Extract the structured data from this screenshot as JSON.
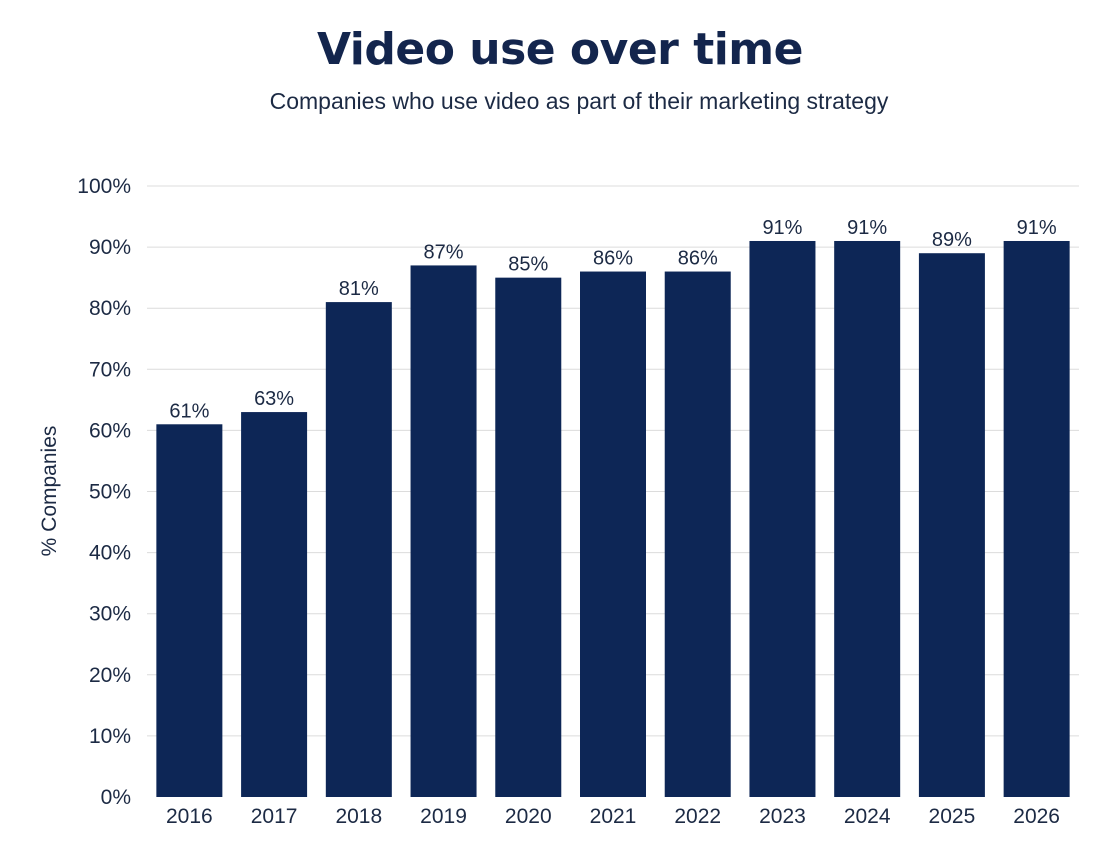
{
  "chart_data": {
    "type": "bar",
    "title": "Video use over time",
    "subtitle": "Companies who use video as part of their marketing strategy",
    "xlabel": "",
    "ylabel": "% Companies",
    "categories": [
      "2016",
      "2017",
      "2018",
      "2019",
      "2020",
      "2021",
      "2022",
      "2023",
      "2024",
      "2025",
      "2026"
    ],
    "values": [
      61,
      63,
      81,
      87,
      85,
      86,
      86,
      91,
      91,
      89,
      91
    ],
    "value_labels": [
      "61%",
      "63%",
      "81%",
      "87%",
      "85%",
      "86%",
      "86%",
      "91%",
      "91%",
      "89%",
      "91%"
    ],
    "ylim": [
      0,
      100
    ],
    "yticks": [
      0,
      10,
      20,
      30,
      40,
      50,
      60,
      70,
      80,
      90,
      100
    ],
    "ytick_labels": [
      "0%",
      "10%",
      "20%",
      "30%",
      "40%",
      "50%",
      "60%",
      "70%",
      "80%",
      "90%",
      "100%"
    ],
    "grid": true,
    "legend": "none",
    "colors": {
      "bar": "#0d2656",
      "grid": "#dcdcdc",
      "text": "#1c2a44",
      "title": "#13254d"
    }
  }
}
